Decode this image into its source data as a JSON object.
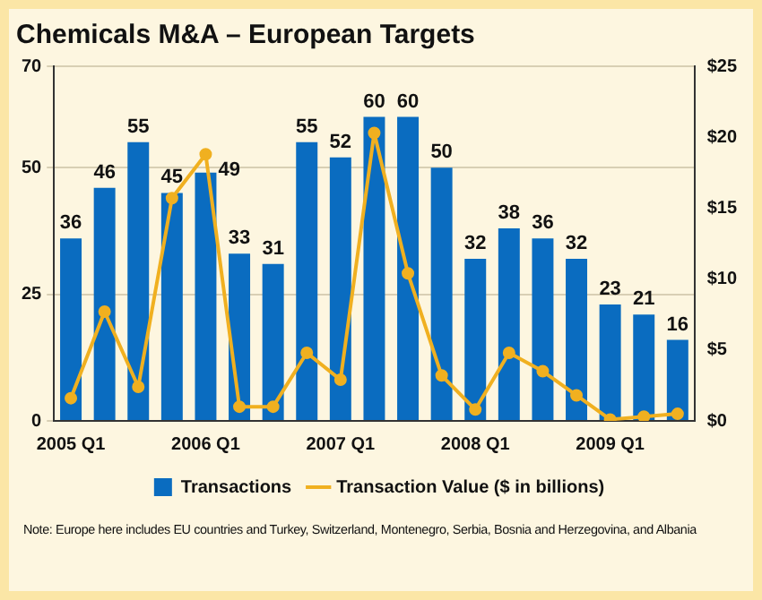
{
  "chart_data": {
    "type": "bar",
    "title": "Chemicals M&A – European Targets",
    "categories": [
      "2005 Q1",
      null,
      null,
      null,
      "2006 Q1",
      null,
      null,
      null,
      "2007 Q1",
      null,
      null,
      null,
      "2008 Q1",
      null,
      null,
      null,
      "2009 Q1",
      null,
      null
    ],
    "series": [
      {
        "name": "Transactions",
        "color": "#0a6cc0",
        "values": [
          36,
          46,
          55,
          45,
          49,
          33,
          31,
          55,
          52,
          60,
          60,
          50,
          32,
          38,
          36,
          32,
          23,
          21,
          16
        ],
        "value_labels": [
          "36",
          "46",
          "55",
          "45",
          "49",
          "33",
          "31",
          "55",
          "52",
          "60",
          "60",
          "50",
          "32",
          "38",
          "36",
          "32",
          "23",
          "21",
          "16"
        ]
      },
      {
        "name": "Transaction Value ($ in billions)",
        "type": "line",
        "axis": "y2",
        "color": "#f0b020",
        "marker": "circle",
        "values": [
          1.6,
          7.7,
          2.4,
          15.7,
          18.8,
          1.0,
          1.0,
          4.8,
          2.9,
          20.3,
          10.4,
          3.2,
          0.8,
          4.8,
          3.5,
          1.8,
          0.1,
          0.3,
          0.5
        ]
      }
    ],
    "ylim": [
      0,
      70
    ],
    "yticks": [
      0,
      25,
      50,
      70
    ],
    "y2lim": [
      0,
      25
    ],
    "y2ticks": [
      {
        "value": 0,
        "label": "$0"
      },
      {
        "value": 5,
        "label": "$5"
      },
      {
        "value": 10,
        "label": "$10"
      },
      {
        "value": 15,
        "label": "$15"
      },
      {
        "value": 20,
        "label": "$20"
      },
      {
        "value": 25,
        "label": "$25"
      }
    ],
    "grid": "y",
    "legend": "bottom",
    "annotations": [
      "Note: Europe here includes EU countries and Turkey, Switzerland, Montenegro, Serbia, Bosnia and Herzegovina, and Albania"
    ]
  }
}
